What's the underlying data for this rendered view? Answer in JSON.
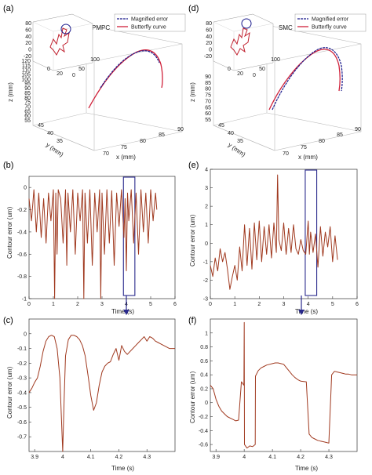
{
  "colors": {
    "error": "#a0391f",
    "magnified": "#1a1a8c",
    "butterfly": "#d0213a",
    "box": "#2a2a8c",
    "axis": "#333333"
  },
  "panels": {
    "a": {
      "label": "(a)",
      "title": "PMPC",
      "legend": [
        "Magnified error",
        "Butterfly curve"
      ],
      "zlabel": "z (mm)",
      "ylabel": "y (mm)",
      "xlabel": "x (mm)",
      "zticks": [
        "120",
        "115",
        "110",
        "105",
        "100",
        "95",
        "90",
        "85",
        "80",
        "75",
        "70",
        "65",
        "60",
        "55"
      ],
      "yticks": [
        "45",
        "40",
        "35"
      ],
      "xticks": [
        "70",
        "75",
        "80",
        "85",
        "90"
      ],
      "inset_yticks": [
        "80",
        "60",
        "40",
        "20",
        "0",
        "-20"
      ],
      "inset_xticks": [
        "0",
        "50",
        "100"
      ],
      "inset_xticks2": [
        "0",
        "20"
      ]
    },
    "d": {
      "label": "(d)",
      "title": "SMC",
      "legend": [
        "Magnified error",
        "Butterfly curve"
      ],
      "zlabel": "z (mm)",
      "ylabel": "y (mm)",
      "xlabel": "x (mm)",
      "zticks": [
        "90",
        "85",
        "80",
        "75",
        "70",
        "65",
        "60",
        "55"
      ],
      "yticks": [
        "45",
        "40",
        "35"
      ],
      "xticks": [
        "70",
        "75",
        "80",
        "85",
        "90"
      ],
      "inset_yticks": [
        "80",
        "60",
        "40",
        "20",
        "0",
        "-20"
      ],
      "inset_xticks": [
        "0",
        "50",
        "100"
      ],
      "inset_xticks2": [
        "0",
        "20"
      ]
    },
    "b": {
      "label": "(b)",
      "ylabel": "Contour error (um)",
      "xlabel": "Time (s)"
    },
    "e": {
      "label": "(e)",
      "ylabel": "Contour error (um)",
      "xlabel": "Time (s)"
    },
    "c": {
      "label": "(c)",
      "ylabel": "Contour error (um)",
      "xlabel": "Time (s)"
    },
    "f": {
      "label": "(f)",
      "ylabel": "Contour error (um)",
      "xlabel": "Time (s)"
    }
  },
  "chart_data": [
    {
      "id": "b",
      "type": "line",
      "xlabel": "Time (s)",
      "ylabel": "Contour error (um)",
      "xlim": [
        0,
        6
      ],
      "ylim": [
        -1,
        0.1
      ],
      "xticks": [
        "0",
        "1",
        "2",
        "3",
        "4",
        "5",
        "6"
      ],
      "yticks": [
        "0",
        "-0.2",
        "-0.4",
        "-0.6",
        "-0.8",
        "-1"
      ],
      "highlight_x": [
        3.88,
        4.35
      ],
      "series": [
        {
          "x": [
            0,
            0.1,
            0.2,
            0.3,
            0.4,
            0.5,
            0.6,
            0.7,
            0.8,
            0.9,
            1.0,
            1.05,
            1.1,
            1.15,
            1.2,
            1.3,
            1.4,
            1.5,
            1.55,
            1.6,
            1.7,
            1.8,
            1.9,
            2.0,
            2.1,
            2.2,
            2.25,
            2.3,
            2.4,
            2.5,
            2.6,
            2.7,
            2.8,
            2.9,
            2.95,
            3.0,
            3.1,
            3.2,
            3.3,
            3.4,
            3.5,
            3.6,
            3.7,
            3.8,
            3.9,
            3.95,
            4.0,
            4.05,
            4.1,
            4.2,
            4.3,
            4.4,
            4.5,
            4.6,
            4.7,
            4.8,
            4.9,
            5.0,
            5.1,
            5.2,
            5.25
          ],
          "y": [
            -0.1,
            -0.3,
            -0.02,
            -0.4,
            -0.05,
            -0.45,
            -0.1,
            -0.5,
            -0.05,
            -0.3,
            -0.02,
            -1.0,
            -0.05,
            -0.6,
            -0.02,
            -0.1,
            -0.5,
            -0.02,
            -0.7,
            -0.05,
            -0.4,
            -0.02,
            -0.6,
            -0.05,
            -0.3,
            -0.02,
            -1.0,
            -0.05,
            -0.5,
            -0.02,
            -0.7,
            -0.05,
            -0.4,
            -0.02,
            -1.0,
            -0.05,
            -0.6,
            -0.02,
            -0.5,
            -0.03,
            -0.7,
            -0.05,
            -0.35,
            -0.02,
            -0.45,
            -0.1,
            -0.75,
            -0.05,
            -0.3,
            -0.02,
            -0.5,
            -0.05,
            -0.6,
            -0.02,
            -0.4,
            -0.05,
            -0.5,
            -0.02,
            -0.3,
            -0.05,
            -0.2
          ]
        }
      ]
    },
    {
      "id": "e",
      "type": "line",
      "xlabel": "Time (s)",
      "ylabel": "Contour error (um)",
      "xlim": [
        0,
        6
      ],
      "ylim": [
        -3,
        4
      ],
      "xticks": [
        "0",
        "1",
        "2",
        "3",
        "4",
        "5",
        "6"
      ],
      "yticks": [
        "4",
        "3",
        "2",
        "1",
        "0",
        "-1",
        "-2",
        "-3"
      ],
      "highlight_x": [
        3.88,
        4.35
      ],
      "series": [
        {
          "x": [
            0,
            0.1,
            0.2,
            0.3,
            0.4,
            0.5,
            0.6,
            0.7,
            0.8,
            0.9,
            1.0,
            1.1,
            1.2,
            1.3,
            1.4,
            1.5,
            1.6,
            1.7,
            1.8,
            1.9,
            2.0,
            2.1,
            2.2,
            2.3,
            2.4,
            2.5,
            2.6,
            2.7,
            2.75,
            2.8,
            2.9,
            3.0,
            3.1,
            3.2,
            3.3,
            3.4,
            3.5,
            3.6,
            3.7,
            3.8,
            3.9,
            4.0,
            4.05,
            4.1,
            4.2,
            4.3,
            4.4,
            4.5,
            4.6,
            4.7,
            4.8,
            4.9,
            5.0,
            5.1,
            5.2
          ],
          "y": [
            -1.2,
            -1.8,
            -0.8,
            -1.5,
            -0.3,
            -1.0,
            -0.5,
            -1.4,
            -2.5,
            -1.8,
            -1.2,
            -2.0,
            -0.2,
            -1.5,
            1.0,
            -1.2,
            0.8,
            -1.4,
            1.1,
            -0.9,
            1.2,
            -1.0,
            0.9,
            -0.6,
            1.0,
            -0.8,
            1.1,
            -0.5,
            3.7,
            0.2,
            -0.4,
            1.1,
            -0.6,
            0.8,
            -0.5,
            1.0,
            -0.3,
            -0.6,
            0.2,
            -0.4,
            -0.6,
            1.2,
            -0.6,
            0.6,
            -0.5,
            0.5,
            -1.3,
            0.9,
            -0.7,
            0.6,
            -0.2,
            0.9,
            -1.0,
            0.4,
            -0.9
          ]
        }
      ]
    },
    {
      "id": "c",
      "type": "line",
      "xlabel": "Time (s)",
      "ylabel": "Contour error (um)",
      "xlim": [
        3.88,
        4.4
      ],
      "ylim": [
        -0.8,
        0.1
      ],
      "xticks": [
        "3.9",
        "4",
        "4.1",
        "4.2",
        "4.3"
      ],
      "yticks": [
        "0",
        "-0.1",
        "-0.2",
        "-0.3",
        "-0.4",
        "-0.5",
        "-0.6",
        "-0.7"
      ],
      "series": [
        {
          "x": [
            3.88,
            3.89,
            3.9,
            3.91,
            3.92,
            3.93,
            3.94,
            3.95,
            3.96,
            3.97,
            3.98,
            3.99,
            3.995,
            4.0,
            4.005,
            4.01,
            4.02,
            4.03,
            4.04,
            4.05,
            4.06,
            4.07,
            4.08,
            4.09,
            4.1,
            4.11,
            4.12,
            4.13,
            4.14,
            4.15,
            4.16,
            4.17,
            4.18,
            4.19,
            4.2,
            4.21,
            4.22,
            4.23,
            4.24,
            4.25,
            4.26,
            4.27,
            4.28,
            4.29,
            4.3,
            4.31,
            4.32,
            4.33,
            4.34,
            4.35,
            4.36,
            4.37,
            4.38,
            4.39,
            4.4
          ],
          "y": [
            -0.4,
            -0.37,
            -0.33,
            -0.3,
            -0.22,
            -0.12,
            -0.05,
            -0.02,
            -0.01,
            -0.02,
            -0.1,
            -0.3,
            -0.55,
            -0.8,
            -0.45,
            -0.15,
            -0.04,
            -0.01,
            -0.01,
            -0.02,
            -0.04,
            -0.08,
            -0.15,
            -0.28,
            -0.42,
            -0.52,
            -0.47,
            -0.35,
            -0.26,
            -0.22,
            -0.2,
            -0.19,
            -0.14,
            -0.1,
            -0.18,
            -0.08,
            -0.12,
            -0.14,
            -0.12,
            -0.1,
            -0.08,
            -0.06,
            -0.04,
            -0.02,
            -0.05,
            -0.02,
            -0.03,
            -0.05,
            -0.06,
            -0.07,
            -0.08,
            -0.09,
            -0.1,
            -0.1,
            -0.1
          ]
        }
      ]
    },
    {
      "id": "f",
      "type": "line",
      "xlabel": "Time (s)",
      "ylabel": "Contour error (um)",
      "xlim": [
        3.88,
        4.4
      ],
      "ylim": [
        -0.7,
        1.2
      ],
      "xticks": [
        "3.9",
        "4",
        "4.1",
        "4.2",
        "4.3"
      ],
      "yticks": [
        "1",
        "0.8",
        "0.6",
        "0.4",
        "0.2",
        "0",
        "-0.2",
        "-0.4",
        "-0.6"
      ],
      "series": [
        {
          "x": [
            3.88,
            3.89,
            3.9,
            3.91,
            3.92,
            3.93,
            3.94,
            3.95,
            3.96,
            3.97,
            3.98,
            3.99,
            3.999,
            4.0,
            4.001,
            4.01,
            4.02,
            4.03,
            4.039,
            4.04,
            4.05,
            4.06,
            4.07,
            4.08,
            4.09,
            4.1,
            4.11,
            4.12,
            4.13,
            4.14,
            4.15,
            4.16,
            4.17,
            4.18,
            4.19,
            4.2,
            4.22,
            4.23,
            4.24,
            4.25,
            4.26,
            4.27,
            4.28,
            4.29,
            4.3,
            4.31,
            4.32,
            4.33,
            4.34,
            4.35,
            4.36,
            4.37,
            4.38,
            4.39,
            4.4
          ],
          "y": [
            0.25,
            0.2,
            0.05,
            -0.05,
            -0.12,
            -0.16,
            -0.2,
            -0.22,
            -0.24,
            -0.26,
            -0.25,
            0.3,
            0.25,
            1.15,
            -0.6,
            -0.65,
            -0.62,
            -0.63,
            -0.6,
            0.38,
            0.46,
            0.5,
            0.52,
            0.54,
            0.55,
            0.56,
            0.57,
            0.57,
            0.56,
            0.55,
            0.5,
            0.45,
            0.4,
            0.36,
            0.33,
            0.31,
            0.3,
            -0.45,
            -0.5,
            -0.52,
            -0.54,
            -0.55,
            -0.56,
            -0.57,
            -0.58,
            0.4,
            0.45,
            0.44,
            0.43,
            0.42,
            0.41,
            0.41,
            0.4,
            0.4,
            0.4
          ]
        }
      ]
    },
    {
      "id": "a",
      "type": "line",
      "title": "PMPC",
      "xlabel": "x (mm)",
      "ylabel": "y (mm)",
      "zlabel": "z (mm)",
      "legend": [
        "Magnified error",
        "Butterfly curve"
      ],
      "series": [
        {
          "name": "Magnified error"
        },
        {
          "name": "Butterfly curve"
        }
      ]
    },
    {
      "id": "d",
      "type": "line",
      "title": "SMC",
      "xlabel": "x (mm)",
      "ylabel": "y (mm)",
      "zlabel": "z (mm)",
      "legend": [
        "Magnified error",
        "Butterfly curve"
      ],
      "series": [
        {
          "name": "Magnified error"
        },
        {
          "name": "Butterfly curve"
        }
      ]
    }
  ]
}
